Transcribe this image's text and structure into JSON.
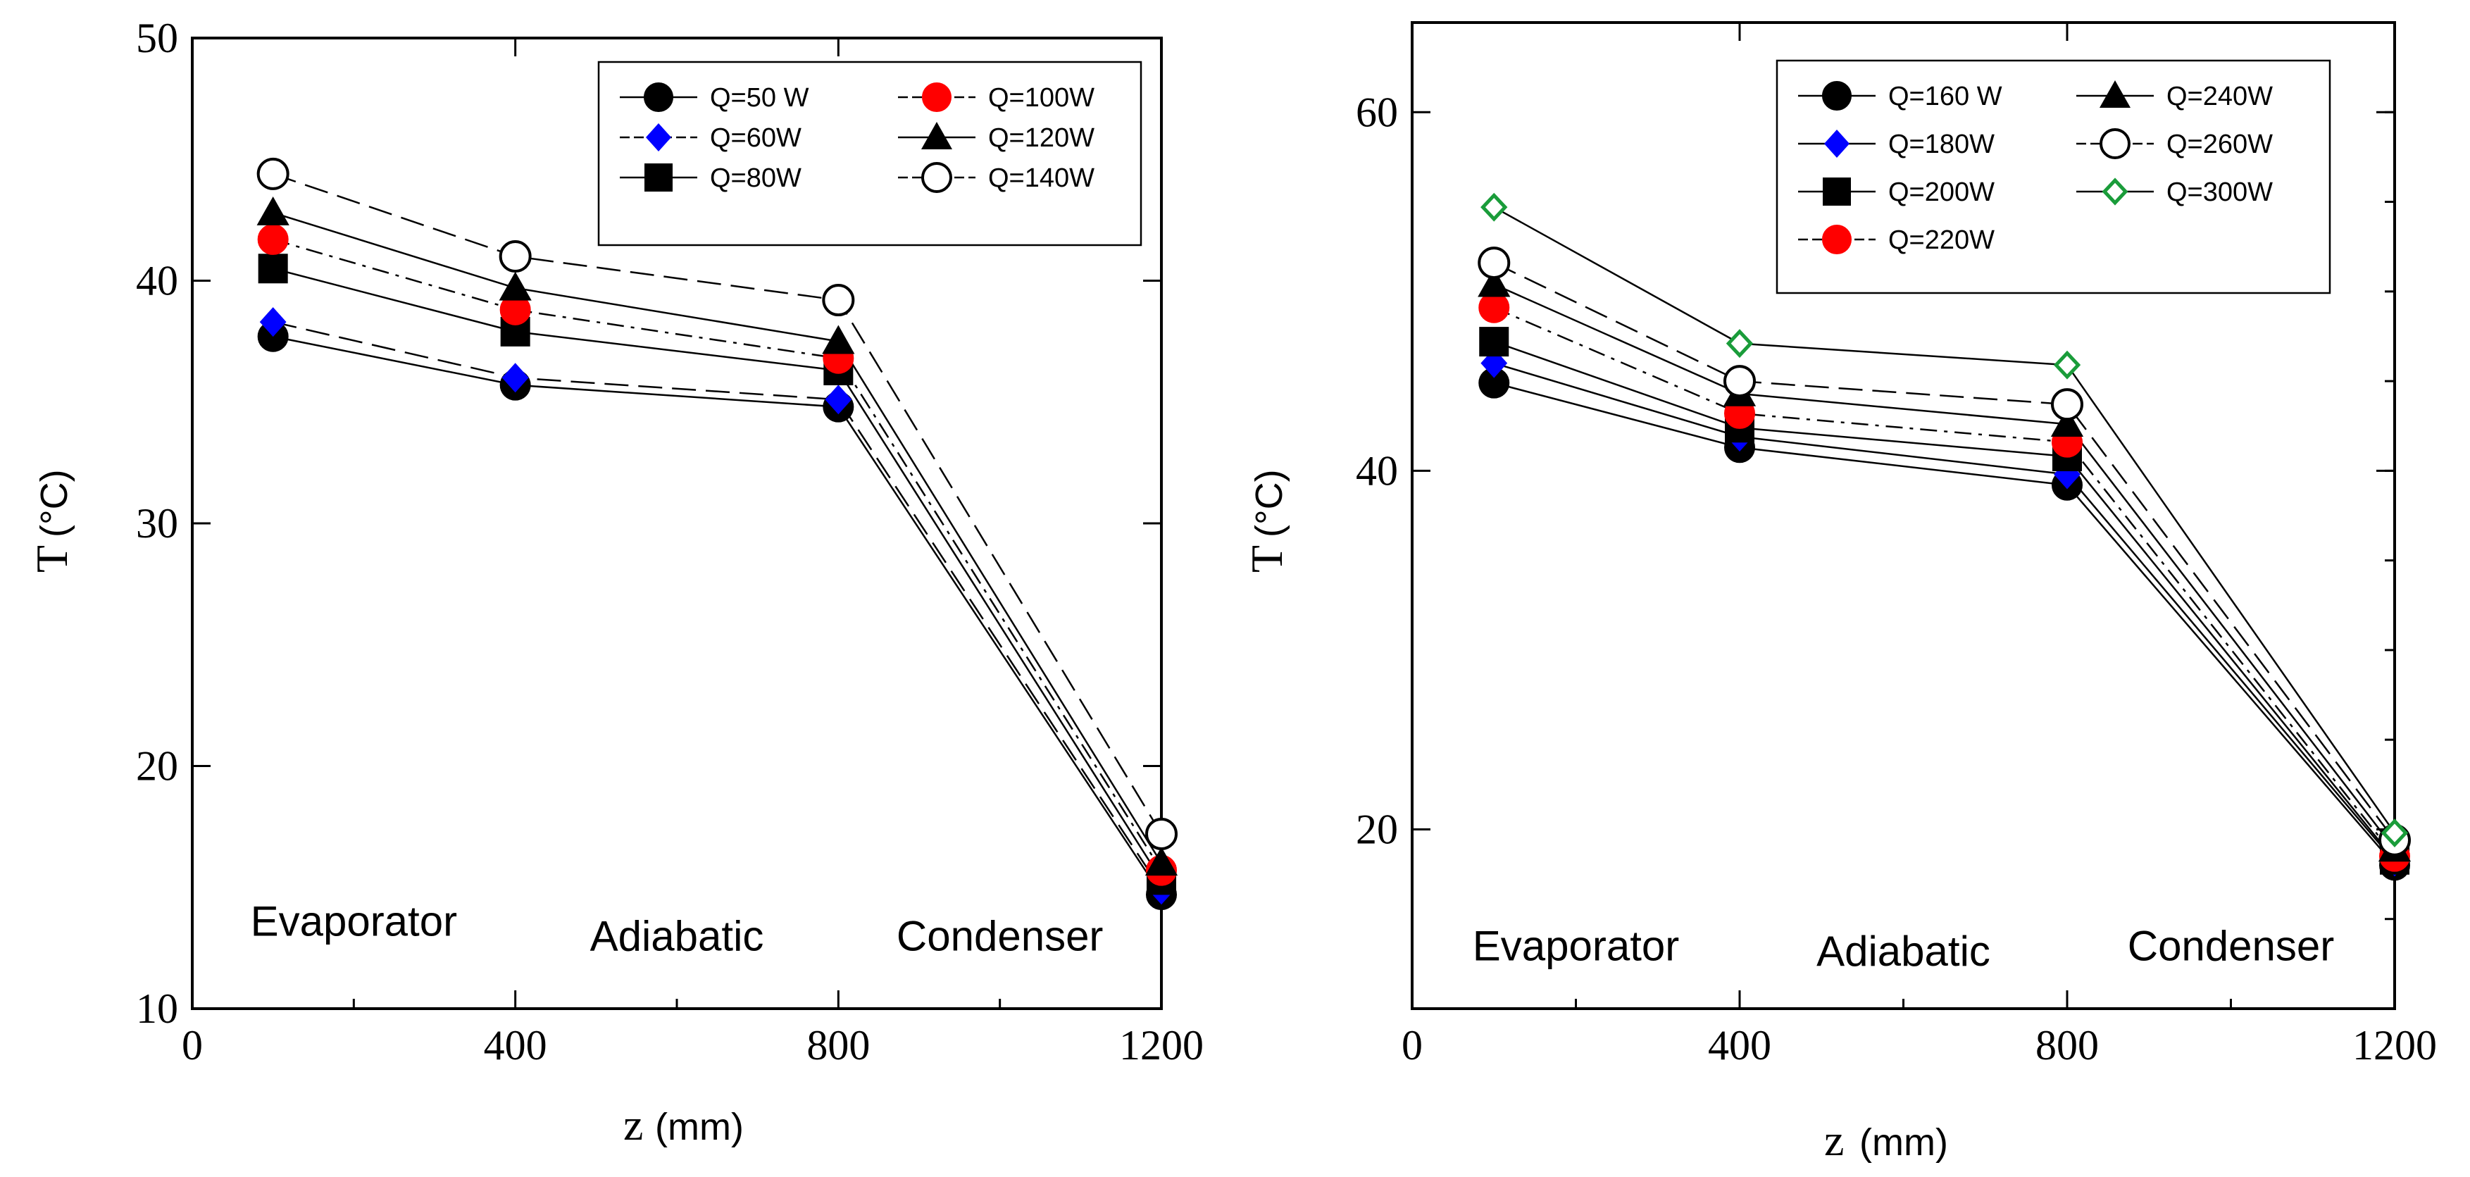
{
  "chart_data": [
    {
      "type": "line",
      "x": [
        100,
        400,
        800,
        1200
      ],
      "xlim": [
        0,
        1200
      ],
      "ylim": [
        10,
        50
      ],
      "xticks": [
        0,
        400,
        800,
        1200
      ],
      "xtick_labels": [
        "0",
        "400",
        "800",
        "1200"
      ],
      "yticks": [
        10,
        20,
        30,
        40,
        50
      ],
      "ytick_labels": [
        "10",
        "20",
        "30",
        "40",
        "50"
      ],
      "xlabel": "z",
      "xlabel_unit": "(mm)",
      "ylabel": "T",
      "ylabel_unit": "(°C)",
      "legend_position": "top-right",
      "regions": [
        {
          "label": "Evaporator",
          "x": 200,
          "y": 13
        },
        {
          "label": "Adiabatic",
          "x": 600,
          "y": 12.4
        },
        {
          "label": "Condenser",
          "x": 1000,
          "y": 12.4
        }
      ],
      "series": [
        {
          "name": "Q=50 W",
          "marker": "circle-filled",
          "color": "#000000",
          "dash": "solid",
          "values": [
            37.7,
            35.7,
            34.8,
            14.7
          ]
        },
        {
          "name": "Q=60W",
          "marker": "diamond-filled",
          "color": "#0000ff",
          "dash": "longdash",
          "values": [
            38.3,
            36.0,
            35.1,
            14.9
          ]
        },
        {
          "name": "Q=80W",
          "marker": "square-filled",
          "color": "#000000",
          "dash": "solid",
          "values": [
            40.5,
            37.9,
            36.3,
            15.3
          ]
        },
        {
          "name": "Q=100W",
          "marker": "circle-filled",
          "color": "#ff0000",
          "dash": "dashdot",
          "values": [
            41.7,
            38.8,
            36.8,
            15.7
          ]
        },
        {
          "name": "Q=120W",
          "marker": "triangle-filled",
          "color": "#000000",
          "dash": "solid",
          "values": [
            42.8,
            39.7,
            37.5,
            16.0
          ]
        },
        {
          "name": "Q=140W",
          "marker": "circle-open",
          "color": "#000000",
          "dash": "longdash",
          "values": [
            44.4,
            41.0,
            39.2,
            17.2
          ]
        }
      ]
    },
    {
      "type": "line",
      "x": [
        100,
        400,
        800,
        1200
      ],
      "xlim": [
        0,
        1200
      ],
      "ylim": [
        10,
        65
      ],
      "xticks": [
        0,
        400,
        800,
        1200
      ],
      "xtick_labels": [
        "0",
        "400",
        "800",
        "1200"
      ],
      "yticks": [
        20,
        40,
        60
      ],
      "ytick_labels": [
        "20",
        "40",
        "60"
      ],
      "xlabel": "z",
      "xlabel_unit": "(mm)",
      "ylabel": "T",
      "ylabel_unit": "(°C)",
      "legend_position": "top-right",
      "regions": [
        {
          "label": "Evaporator",
          "x": 200,
          "y": 12.7
        },
        {
          "label": "Adiabatic",
          "x": 600,
          "y": 12.4
        },
        {
          "label": "Condenser",
          "x": 1000,
          "y": 12.7
        }
      ],
      "series": [
        {
          "name": "Q=160 W",
          "marker": "circle-filled",
          "color": "#000000",
          "dash": "solid",
          "values": [
            44.9,
            41.3,
            39.2,
            18.0
          ]
        },
        {
          "name": "Q=180W",
          "marker": "diamond-filled",
          "color": "#0000ff",
          "dash": "solid",
          "values": [
            46.0,
            41.9,
            39.8,
            18.2
          ]
        },
        {
          "name": "Q=200W",
          "marker": "square-filled",
          "color": "#000000",
          "dash": "solid",
          "values": [
            47.2,
            42.4,
            40.8,
            18.3
          ]
        },
        {
          "name": "Q=220W",
          "marker": "circle-filled",
          "color": "#ff0000",
          "dash": "dashdot",
          "values": [
            49.1,
            43.2,
            41.6,
            18.5
          ]
        },
        {
          "name": "Q=240W",
          "marker": "triangle-filled",
          "color": "#000000",
          "dash": "solid",
          "values": [
            50.4,
            44.3,
            42.6,
            18.9
          ]
        },
        {
          "name": "Q=260W",
          "marker": "circle-open",
          "color": "#000000",
          "dash": "longdash",
          "values": [
            51.6,
            45.0,
            43.7,
            19.4
          ]
        },
        {
          "name": "Q=300W",
          "marker": "diamond-open",
          "color": "#1a9c3a",
          "dash": "solid",
          "values": [
            54.7,
            47.1,
            45.9,
            19.8
          ]
        }
      ]
    }
  ]
}
